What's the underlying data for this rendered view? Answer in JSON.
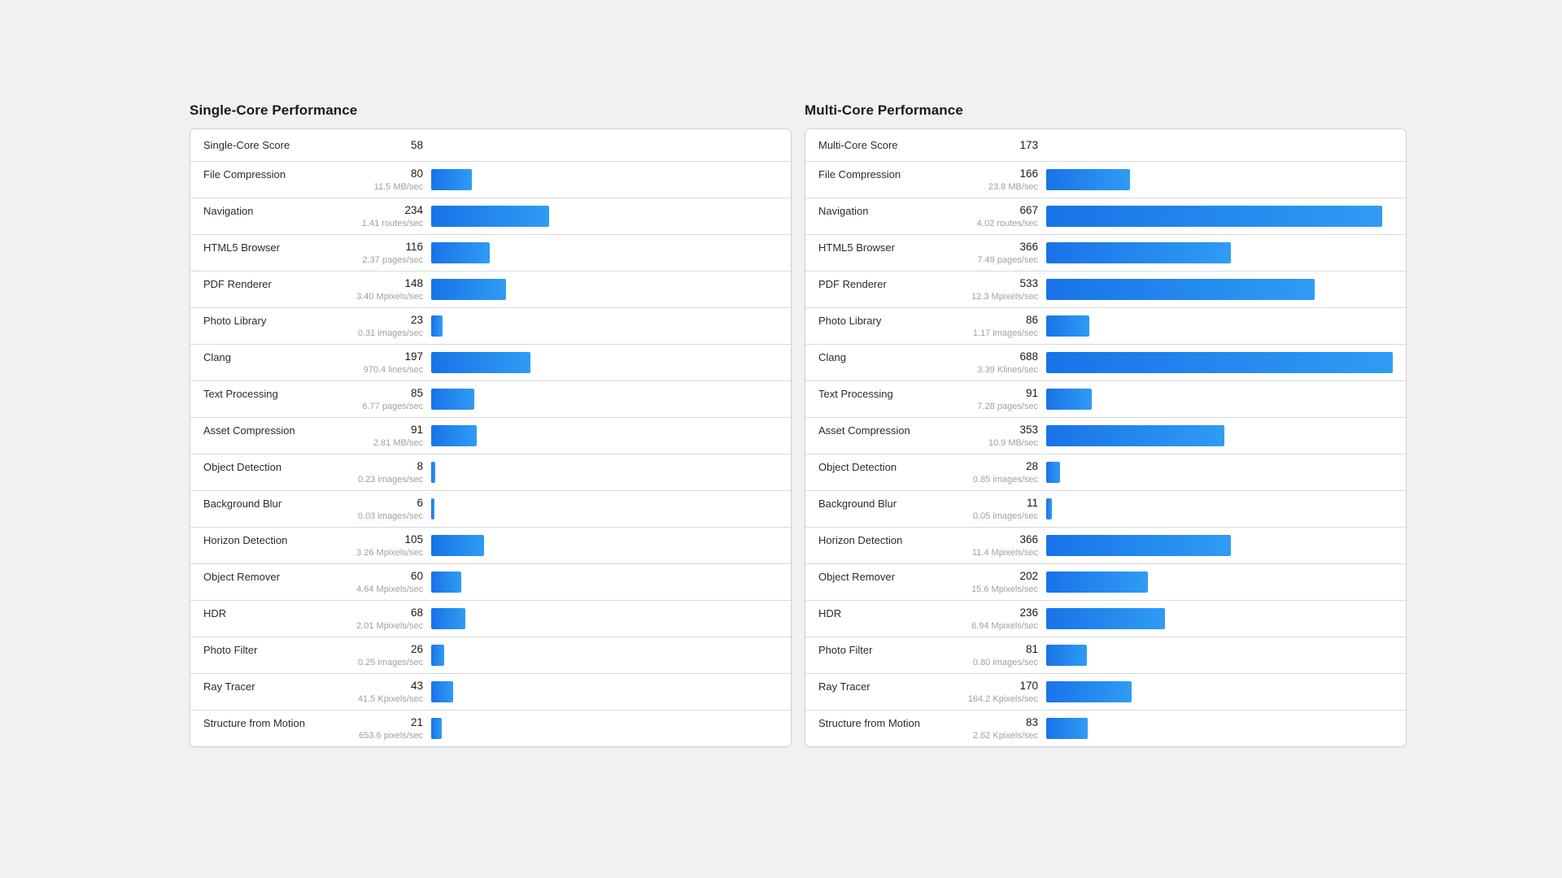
{
  "chart_data": [
    {
      "type": "bar",
      "orientation": "horizontal",
      "title": "Single-Core Performance",
      "score_row": {
        "label": "Single-Core Score",
        "value": 58
      },
      "categories": [
        "File Compression",
        "Navigation",
        "HTML5 Browser",
        "PDF Renderer",
        "Photo Library",
        "Clang",
        "Text Processing",
        "Asset Compression",
        "Object Detection",
        "Background Blur",
        "Horizon Detection",
        "Object Remover",
        "HDR",
        "Photo Filter",
        "Ray Tracer",
        "Structure from Motion"
      ],
      "values": [
        80,
        234,
        116,
        148,
        23,
        197,
        85,
        91,
        8,
        6,
        105,
        60,
        68,
        26,
        43,
        21
      ],
      "rate_labels": [
        "11.5 MB/sec",
        "1.41 routes/sec",
        "2.37 pages/sec",
        "3.40 Mpixels/sec",
        "0.31 images/sec",
        "970.4 lines/sec",
        "6.77 pages/sec",
        "2.81 MB/sec",
        "0.23 images/sec",
        "0.03 images/sec",
        "3.26 Mpixels/sec",
        "4.64 Mpixels/sec",
        "2.01 Mpixels/sec",
        "0.25 images/sec",
        "41.5 Kpixels/sec",
        "653.6 pixels/sec"
      ],
      "xlim": [
        0,
        688
      ],
      "grid": false,
      "legend": false
    },
    {
      "type": "bar",
      "orientation": "horizontal",
      "title": "Multi-Core Performance",
      "score_row": {
        "label": "Multi-Core Score",
        "value": 173
      },
      "categories": [
        "File Compression",
        "Navigation",
        "HTML5 Browser",
        "PDF Renderer",
        "Photo Library",
        "Clang",
        "Text Processing",
        "Asset Compression",
        "Object Detection",
        "Background Blur",
        "Horizon Detection",
        "Object Remover",
        "HDR",
        "Photo Filter",
        "Ray Tracer",
        "Structure from Motion"
      ],
      "values": [
        166,
        667,
        366,
        533,
        86,
        688,
        91,
        353,
        28,
        11,
        366,
        202,
        236,
        81,
        170,
        83
      ],
      "rate_labels": [
        "23.8 MB/sec",
        "4.02 routes/sec",
        "7.49 pages/sec",
        "12.3 Mpixels/sec",
        "1.17 images/sec",
        "3.39 Klines/sec",
        "7.28 pages/sec",
        "10.9 MB/sec",
        "0.85 images/sec",
        "0.05 images/sec",
        "11.4 Mpixels/sec",
        "15.6 Mpixels/sec",
        "6.94 Mpixels/sec",
        "0.80 images/sec",
        "164.2 Kpixels/sec",
        "2.62 Kpixels/sec"
      ],
      "xlim": [
        0,
        688
      ],
      "grid": false,
      "legend": false
    }
  ],
  "colors": {
    "page_background": "#f1f1f2",
    "card_background": "#ffffff",
    "card_border": "#d1d1d3",
    "row_divider": "#dadadc",
    "title_text": "#1a1a1a",
    "label_text": "#2b2b2b",
    "value_text": "#1a1a1a",
    "rate_text": "#9da0a3",
    "bar_gradient_start": "#1873e8",
    "bar_gradient_end": "#2f9cf4"
  }
}
